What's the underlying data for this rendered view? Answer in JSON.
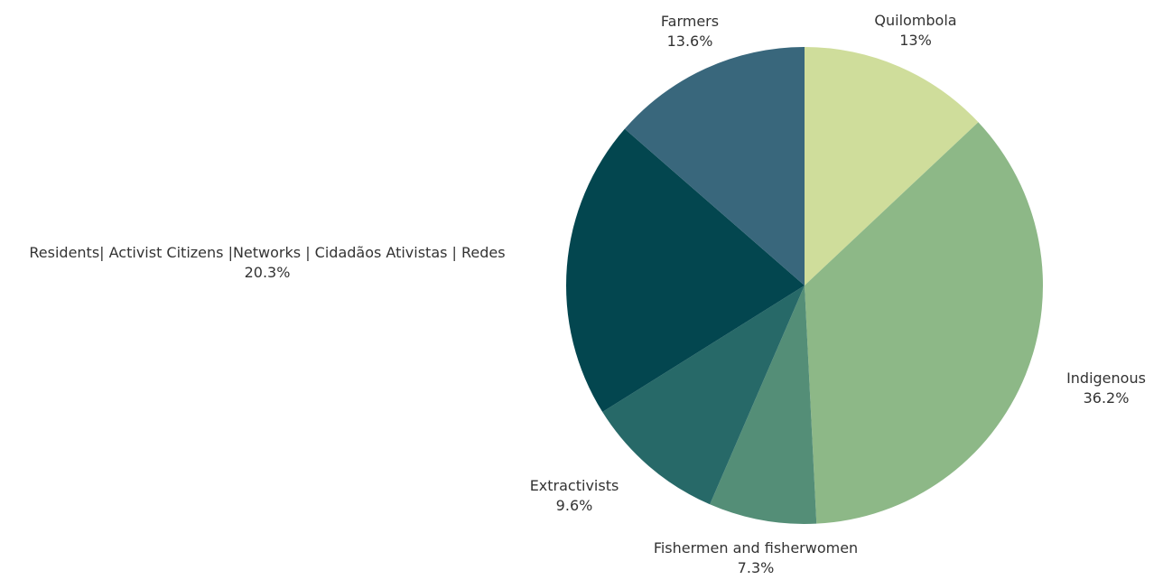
{
  "chart_data": {
    "type": "pie",
    "title": "",
    "legend": "none",
    "slices": [
      {
        "label": "Quilombola",
        "value_label": "13%",
        "value": 13.0,
        "color": "#cfdd9b"
      },
      {
        "label": "Indigenous",
        "value_label": "36.2%",
        "value": 36.2,
        "color": "#8db887"
      },
      {
        "label": "Fishermen and fisherwomen",
        "value_label": "7.3%",
        "value": 7.3,
        "color": "#548e77"
      },
      {
        "label": "Extractivists",
        "value_label": "9.6%",
        "value": 9.6,
        "color": "#276968"
      },
      {
        "label": "Residents| Activist Citizens |Networks | Cidadãos Ativistas | Redes",
        "value_label": "20.3%",
        "value": 20.3,
        "color": "#03464f"
      },
      {
        "label": "Farmers",
        "value_label": "13.6%",
        "value": 13.6,
        "color": "#39677c"
      }
    ]
  }
}
